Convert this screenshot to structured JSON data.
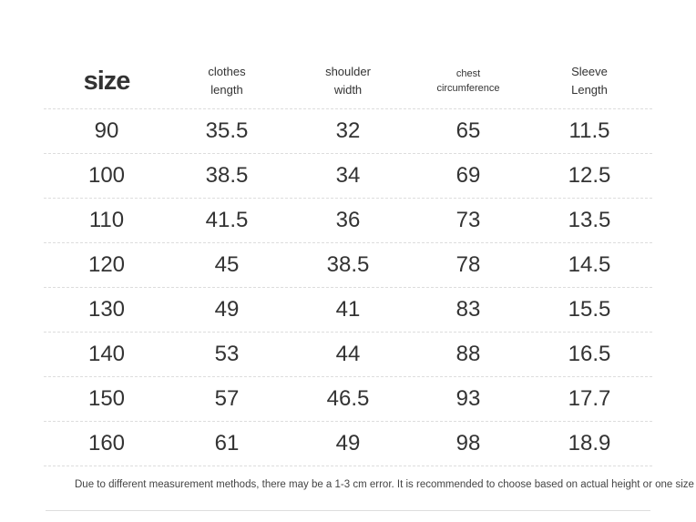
{
  "table": {
    "header": [
      [
        "size"
      ],
      [
        "clothes",
        "length"
      ],
      [
        "shoulder",
        "width"
      ],
      [
        "chest",
        "circumference"
      ],
      [
        "Sleeve",
        "Length"
      ]
    ],
    "rows": [
      [
        90,
        35.5,
        32,
        65,
        11.5
      ],
      [
        100,
        38.5,
        34,
        69,
        12.5
      ],
      [
        110,
        41.5,
        36,
        73,
        13.5
      ],
      [
        120,
        45,
        38.5,
        78,
        14.5
      ],
      [
        130,
        49,
        41,
        83,
        15.5
      ],
      [
        140,
        53,
        44,
        88,
        16.5
      ],
      [
        150,
        57,
        46.5,
        93,
        17.7
      ],
      [
        160,
        61,
        49,
        98,
        18.9
      ]
    ]
  },
  "footnote": "Due to different measurement methods, there may be a 1-3 cm error. It is recommended to choose based on actual height or one size up!"
}
